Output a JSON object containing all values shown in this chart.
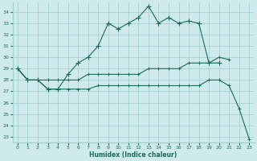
{
  "title": "",
  "xlabel": "Humidex (Indice chaleur)",
  "ylabel": "",
  "xlim": [
    -0.5,
    23.5
  ],
  "ylim": [
    22.5,
    34.8
  ],
  "yticks": [
    23,
    24,
    25,
    26,
    27,
    28,
    29,
    30,
    31,
    32,
    33,
    34
  ],
  "xticks": [
    0,
    1,
    2,
    3,
    4,
    5,
    6,
    7,
    8,
    9,
    10,
    11,
    12,
    13,
    14,
    15,
    16,
    17,
    18,
    19,
    20,
    21,
    22,
    23
  ],
  "background_color": "#ceeaea",
  "grid_color": "#9ecece",
  "line_color": "#1a6b5a",
  "line1_x": [
    0,
    1,
    2,
    3,
    4,
    5,
    6,
    7,
    8,
    9,
    10,
    11,
    12,
    13,
    14,
    15,
    16,
    17,
    18,
    19,
    20
  ],
  "line1_y": [
    29.0,
    28.0,
    28.0,
    27.2,
    27.2,
    28.5,
    29.5,
    30.0,
    31.0,
    33.0,
    32.5,
    33.0,
    33.5,
    34.5,
    33.0,
    33.5,
    33.0,
    33.2,
    33.0,
    29.5,
    29.5
  ],
  "line2_x": [
    0,
    1,
    2,
    3,
    4,
    5,
    6,
    7,
    8,
    9,
    10,
    11,
    12,
    13,
    14,
    15,
    16,
    17,
    18,
    19,
    20,
    21
  ],
  "line2_y": [
    29.0,
    28.0,
    28.0,
    28.0,
    28.0,
    28.0,
    28.0,
    28.5,
    28.5,
    28.5,
    28.5,
    28.5,
    28.5,
    29.0,
    29.0,
    29.0,
    29.0,
    29.5,
    29.5,
    29.5,
    30.0,
    29.8
  ],
  "line3_x": [
    0,
    1,
    2,
    3,
    4,
    5,
    6,
    7,
    8,
    9,
    10,
    11,
    12,
    13,
    14,
    15,
    16,
    17,
    18,
    19,
    20,
    21,
    22,
    23
  ],
  "line3_y": [
    29.0,
    28.0,
    28.0,
    27.2,
    27.2,
    27.2,
    27.2,
    27.2,
    27.5,
    27.5,
    27.5,
    27.5,
    27.5,
    27.5,
    27.5,
    27.5,
    27.5,
    27.5,
    27.5,
    28.0,
    28.0,
    27.5,
    25.5,
    22.8
  ]
}
